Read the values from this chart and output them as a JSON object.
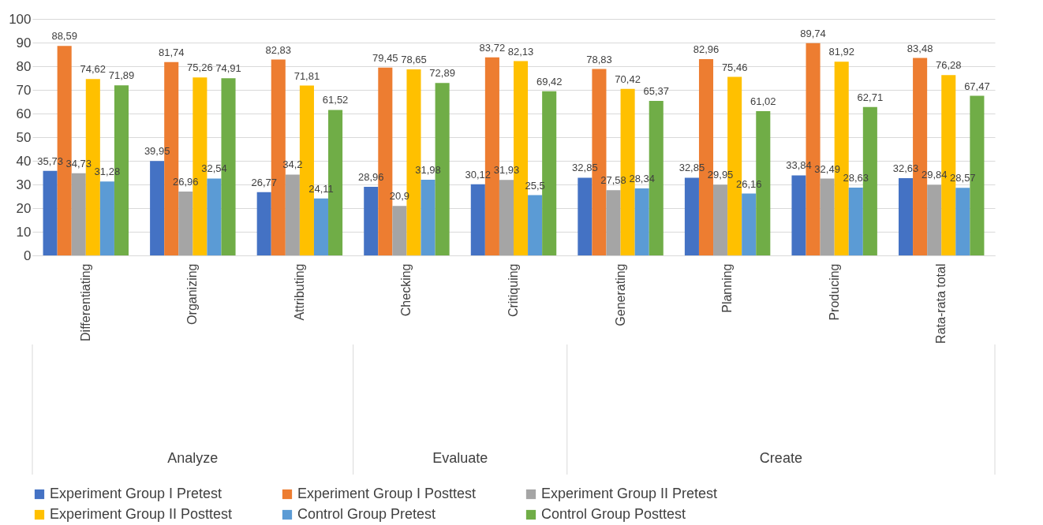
{
  "chart_data": {
    "type": "bar",
    "categories": [
      "Differentiating",
      "Organizing",
      "Attributing",
      "Checking",
      "Critiquing",
      "Generating",
      "Planning",
      "Producing",
      "Rata-rata total"
    ],
    "series": [
      {
        "name": "Experiment Group I Pretest",
        "color": "#4472c4",
        "values": [
          35.73,
          39.95,
          26.77,
          28.96,
          30.12,
          32.85,
          32.85,
          33.84,
          32.63
        ],
        "value_labels": [
          "35,73",
          "39,95",
          "26,77",
          "28,96",
          "30,12",
          "32,85",
          "32,85",
          "33,84",
          "32,63"
        ]
      },
      {
        "name": "Experiment Group I Posttest",
        "color": "#ed7d31",
        "values": [
          88.59,
          81.74,
          82.83,
          79.45,
          83.72,
          78.83,
          82.96,
          89.74,
          83.48
        ],
        "value_labels": [
          "88,59",
          "81,74",
          "82,83",
          "79,45",
          "83,72",
          "78,83",
          "82,96",
          "89,74",
          "83,48"
        ]
      },
      {
        "name": "Experiment Group II Pretest",
        "color": "#a5a5a5",
        "values": [
          34.73,
          26.96,
          34.2,
          20.9,
          31.93,
          27.58,
          29.95,
          32.49,
          29.84
        ],
        "value_labels": [
          "34,73",
          "26,96",
          "34,2",
          "20,9",
          "31,93",
          "27,58",
          "29,95",
          "32,49",
          "29,84"
        ]
      },
      {
        "name": "Experiment Group II Posttest",
        "color": "#ffc000",
        "values": [
          74.62,
          75.26,
          71.81,
          78.65,
          82.13,
          70.42,
          75.46,
          81.92,
          76.28
        ],
        "value_labels": [
          "74,62",
          "75,26",
          "71,81",
          "78,65",
          "82,13",
          "70,42",
          "75,46",
          "81,92",
          "76,28"
        ]
      },
      {
        "name": "Control Group Pretest",
        "color": "#5b9bd5",
        "values": [
          31.28,
          32.54,
          24.11,
          31.98,
          25.5,
          28.34,
          26.16,
          28.63,
          28.57
        ],
        "value_labels": [
          "31,28",
          "32,54",
          "24,11",
          "31,98",
          "25,5",
          "28,34",
          "26,16",
          "28,63",
          "28,57"
        ]
      },
      {
        "name": "Control Group Posttest",
        "color": "#70ad47",
        "values": [
          71.89,
          74.91,
          61.52,
          72.89,
          69.42,
          65.37,
          61.02,
          62.71,
          67.47
        ],
        "value_labels": [
          "71,89",
          "74,91",
          "61,52",
          "72,89",
          "69,42",
          "65,37",
          "61,02",
          "62,71",
          "67,47"
        ]
      }
    ],
    "annotations": [
      "Analyze",
      "Evaluate",
      "Create"
    ],
    "ylim": [
      0,
      100
    ],
    "yticks": [
      0,
      10,
      20,
      30,
      40,
      50,
      60,
      70,
      80,
      90,
      100
    ],
    "grid": "y",
    "legend": "bottom"
  }
}
